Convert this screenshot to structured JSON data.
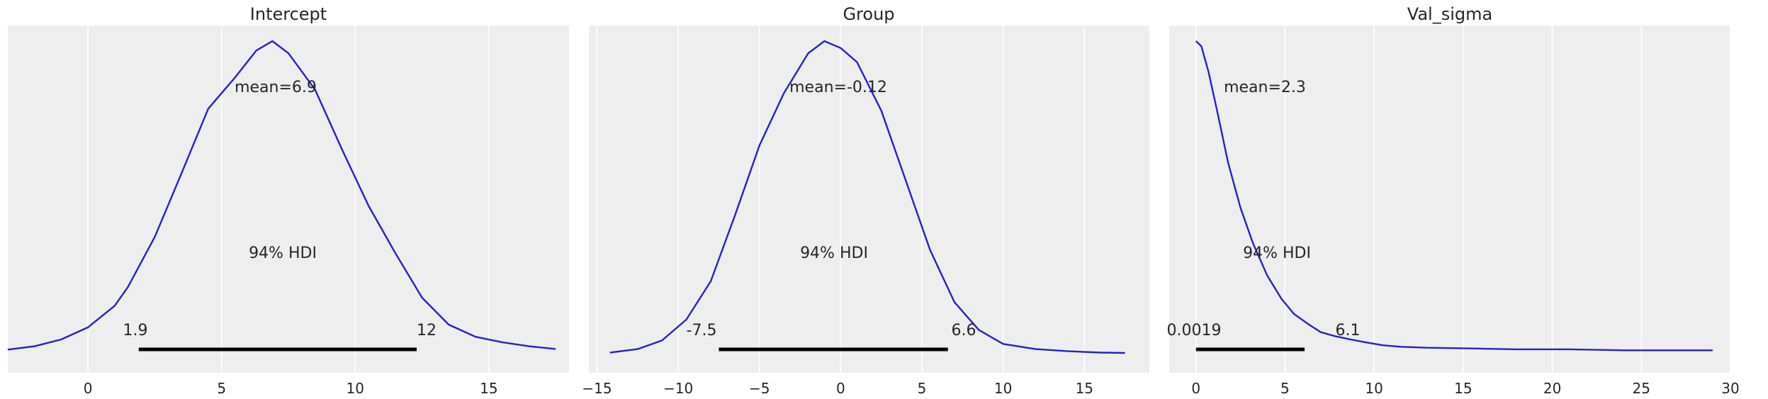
{
  "chart_data": [
    {
      "type": "line",
      "title": "Intercept",
      "xlabel": "",
      "ylabel": "",
      "grid": true,
      "xlim": [
        -3.0,
        18.0
      ],
      "xticks": [
        0,
        5,
        10,
        15
      ],
      "tick_labels": [
        "0",
        "5",
        "10",
        "15"
      ],
      "mean_label": "mean=6.9",
      "hdi_label": "94% HDI",
      "hdi": [
        1.9,
        12.3
      ],
      "hdi_labels": [
        "1.9",
        "12"
      ],
      "x": [
        -3.0,
        -2.0,
        -1.0,
        0.0,
        1.0,
        1.5,
        2.5,
        3.5,
        4.5,
        5.5,
        6.3,
        6.9,
        7.5,
        8.5,
        9.5,
        10.5,
        11.5,
        12.5,
        13.5,
        14.5,
        15.5,
        16.5,
        17.5
      ],
      "density": [
        0.0035,
        0.006,
        0.011,
        0.02,
        0.036,
        0.05,
        0.087,
        0.134,
        0.182,
        0.205,
        0.225,
        0.232,
        0.223,
        0.196,
        0.152,
        0.11,
        0.075,
        0.042,
        0.022,
        0.013,
        0.009,
        0.006,
        0.004
      ]
    },
    {
      "type": "line",
      "title": "Group",
      "xlabel": "",
      "ylabel": "",
      "grid": true,
      "xlim": [
        -15.5,
        19.0
      ],
      "xticks": [
        -15,
        -10,
        -5,
        0,
        5,
        10,
        15
      ],
      "tick_labels": [
        "−15",
        "−10",
        "−5",
        "0",
        "5",
        "10",
        "15"
      ],
      "mean_label": "mean=-0.12",
      "hdi_label": "94% HDI",
      "hdi": [
        -7.5,
        6.6
      ],
      "hdi_labels": [
        "-7.5",
        "6.6"
      ],
      "x": [
        -14.2,
        -12.5,
        -11.0,
        -9.5,
        -8.0,
        -6.5,
        -5.0,
        -3.5,
        -2.0,
        -1.0,
        0.0,
        1.0,
        2.5,
        4.0,
        5.5,
        7.0,
        8.5,
        10.0,
        12.0,
        14.0,
        16.0,
        17.5
      ],
      "density": [
        0.001,
        0.003,
        0.008,
        0.02,
        0.042,
        0.08,
        0.12,
        0.15,
        0.173,
        0.18,
        0.176,
        0.168,
        0.14,
        0.1,
        0.06,
        0.03,
        0.014,
        0.006,
        0.003,
        0.0018,
        0.001,
        0.0008
      ]
    },
    {
      "type": "line",
      "title": "Val_sigma",
      "xlabel": "",
      "ylabel": "",
      "grid": true,
      "xlim": [
        -1.5,
        30.0
      ],
      "xticks": [
        0,
        5,
        10,
        15,
        20,
        25,
        30
      ],
      "tick_labels": [
        "0",
        "5",
        "10",
        "15",
        "20",
        "25",
        "30"
      ],
      "mean_label": "mean=2.3",
      "hdi_label": "94% HDI",
      "hdi": [
        0.0019,
        6.1
      ],
      "hdi_labels": [
        "0.0019",
        "6.1"
      ],
      "x": [
        0.0,
        0.3,
        0.7,
        1.2,
        1.8,
        2.5,
        3.2,
        4.0,
        4.8,
        5.5,
        6.3,
        7.0,
        7.8,
        8.6,
        9.5,
        10.5,
        11.5,
        13.0,
        15.0,
        18.0,
        21.0,
        24.0,
        27.0,
        29.0
      ],
      "density": [
        0.31,
        0.305,
        0.28,
        0.24,
        0.19,
        0.145,
        0.11,
        0.078,
        0.055,
        0.04,
        0.03,
        0.022,
        0.018,
        0.015,
        0.012,
        0.009,
        0.0075,
        0.0065,
        0.006,
        0.005,
        0.005,
        0.004,
        0.004,
        0.004
      ]
    }
  ]
}
